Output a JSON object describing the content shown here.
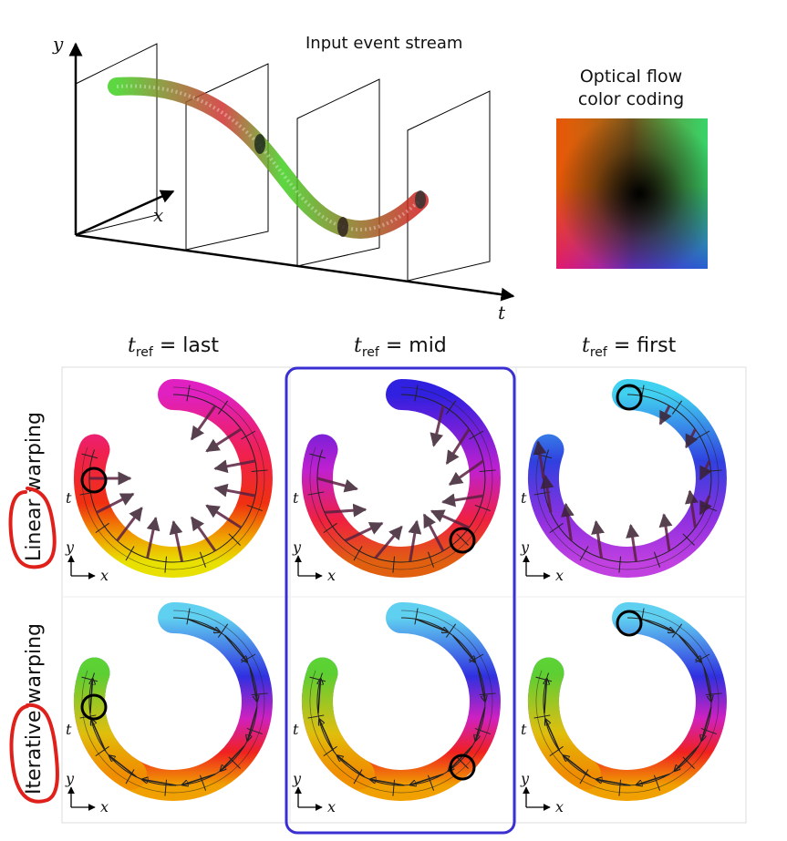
{
  "top": {
    "stream_title": "Input event stream",
    "axis_y": "y",
    "axis_x": "x",
    "axis_t": "t",
    "flow_legend_line1": "Optical flow",
    "flow_legend_line2": "color coding"
  },
  "columns": [
    {
      "t": "t",
      "sub": "ref",
      "eq": " = last"
    },
    {
      "t": "t",
      "sub": "ref",
      "eq": " = mid"
    },
    {
      "t": "t",
      "sub": "ref",
      "eq": " = first"
    }
  ],
  "rows": [
    {
      "label": "Linear warping"
    },
    {
      "label": "Iterative warping"
    }
  ],
  "panel_axes": {
    "t": "t",
    "y": "y",
    "x": "x"
  },
  "colors": {
    "highlight_box": "#3a2fd0",
    "handwritten_mark": "#e0201a"
  }
}
